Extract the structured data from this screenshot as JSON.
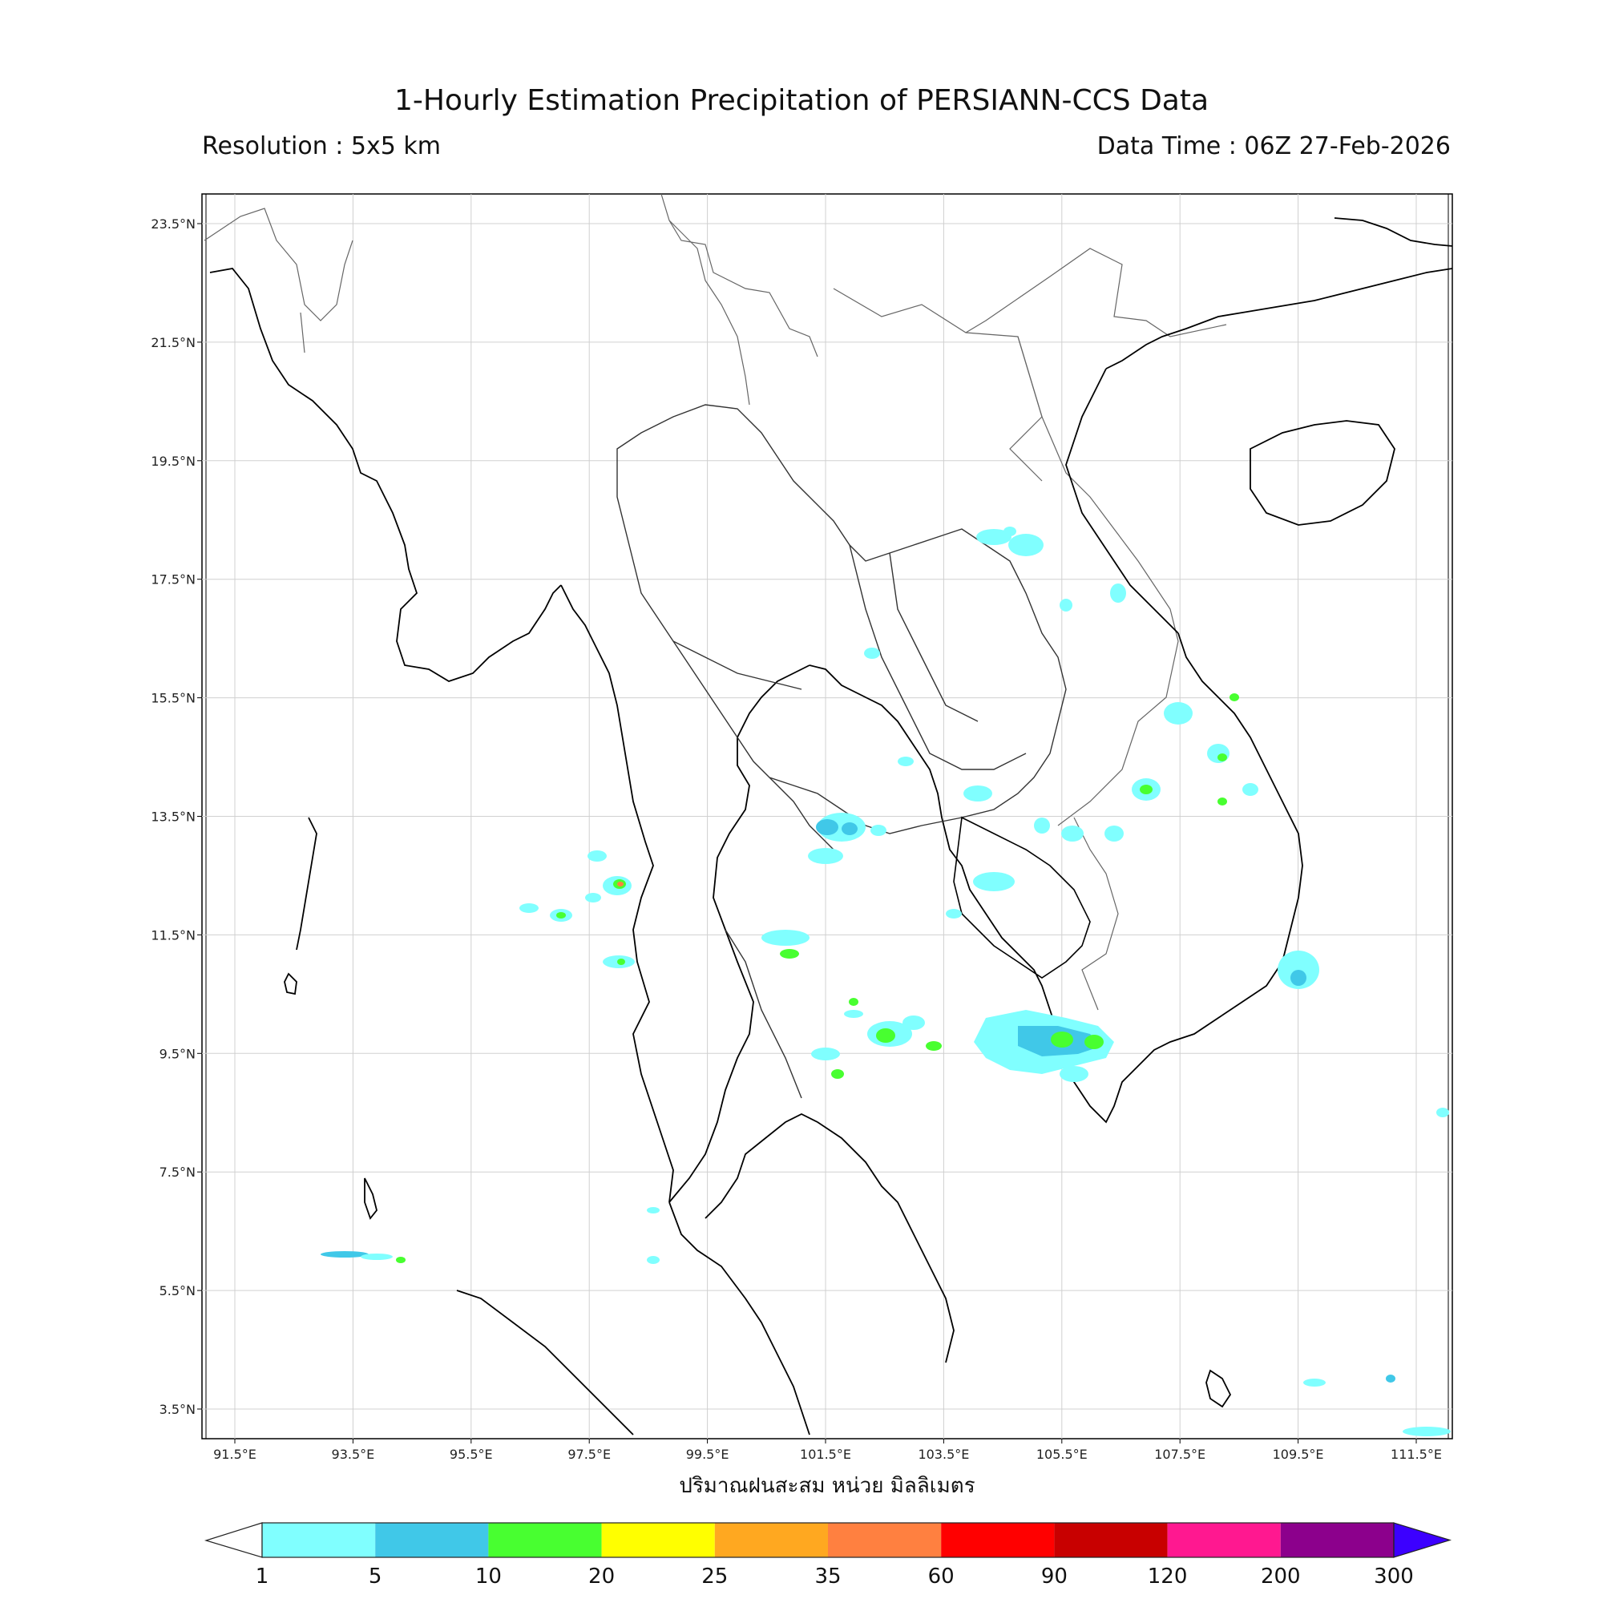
{
  "header": {
    "title": "1-Hourly Estimation Precipitation of PERSIANN-CCS Data",
    "resolution": "Resolution : 5x5 km",
    "data_time": "Data Time : 06Z 27-Feb-2026"
  },
  "map": {
    "x_ticks": [
      "91.5°E",
      "93.5°E",
      "95.5°E",
      "97.5°E",
      "99.5°E",
      "101.5°E",
      "103.5°E",
      "105.5°E",
      "107.5°E",
      "109.5°E",
      "111.5°E"
    ],
    "y_ticks": [
      "23.5°N",
      "21.5°N",
      "19.5°N",
      "17.5°N",
      "15.5°N",
      "13.5°N",
      "11.5°N",
      "9.5°N",
      "7.5°N",
      "5.5°N",
      "3.5°N"
    ],
    "x_label": "ปริมาณฝนสะสม หน่วย มิลลิเมตร",
    "coastline_color": "#000000",
    "border_color": "#555555"
  },
  "colorbar": {
    "colors": [
      "#80ffff",
      "#40c8e8",
      "#48ff30",
      "#ffff00",
      "#ffa820",
      "#ff8040",
      "#ff0000",
      "#c80000",
      "#ff1890",
      "#8c008c",
      "#3c00ff"
    ],
    "labels": [
      "1",
      "5",
      "10",
      "20",
      "25",
      "35",
      "60",
      "90",
      "120",
      "200",
      "300"
    ]
  }
}
